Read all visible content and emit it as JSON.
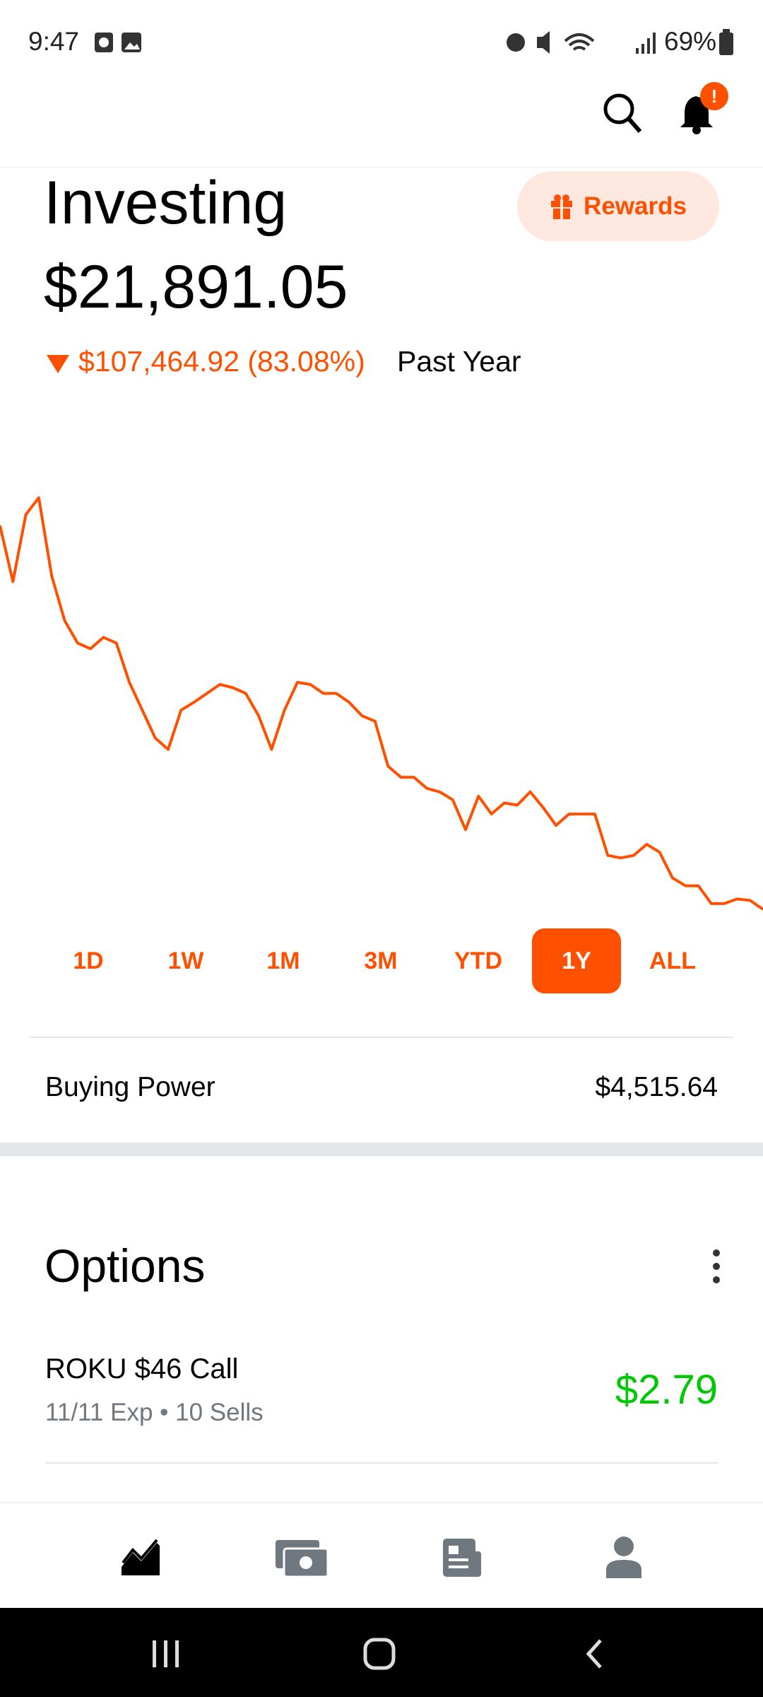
{
  "status_bar": {
    "time": "9:47",
    "battery": "69%"
  },
  "portfolio": {
    "title": "Investing",
    "rewards": "Rewards",
    "value": "$21,891.05",
    "change": "$107,464.92 (83.08%)",
    "period": "Past Year"
  },
  "chart": {
    "type": "line",
    "color": "#ff5000",
    "values": [
      129400,
      113700,
      132500,
      137200,
      115300,
      102800,
      96500,
      94900,
      98100,
      96500,
      85500,
      77700,
      69900,
      66700,
      77700,
      79900,
      82400,
      84900,
      84000,
      82400,
      76100,
      66700,
      77700,
      85500,
      84900,
      82400,
      82400,
      79900,
      76100,
      74600,
      62000,
      58900,
      58900,
      55800,
      54800,
      52600,
      44200,
      53600,
      48600,
      51700,
      51100,
      54800,
      50400,
      45400,
      48600,
      48600,
      48600,
      37000,
      36300,
      37000,
      40100,
      37900,
      30700,
      28500,
      28500,
      23500,
      23500,
      24800,
      24400,
      21900
    ]
  },
  "ranges": {
    "items": [
      "1D",
      "1W",
      "1M",
      "3M",
      "YTD",
      "1Y",
      "ALL"
    ],
    "selected": 5
  },
  "buying_power": {
    "label": "Buying Power",
    "value": "$4,515.64"
  },
  "options": {
    "title": "Options",
    "items": [
      {
        "name": "ROKU $46 Call",
        "detail": "11/11 Exp • 10 Sells",
        "price": "$2.79"
      }
    ]
  }
}
